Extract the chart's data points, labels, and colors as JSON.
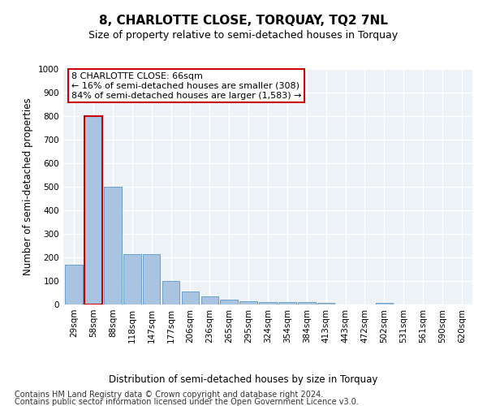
{
  "title": "8, CHARLOTTE CLOSE, TORQUAY, TQ2 7NL",
  "subtitle": "Size of property relative to semi-detached houses in Torquay",
  "xlabel": "Distribution of semi-detached houses by size in Torquay",
  "ylabel": "Number of semi-detached properties",
  "categories": [
    "29sqm",
    "58sqm",
    "88sqm",
    "118sqm",
    "147sqm",
    "177sqm",
    "206sqm",
    "236sqm",
    "265sqm",
    "295sqm",
    "324sqm",
    "354sqm",
    "384sqm",
    "413sqm",
    "443sqm",
    "472sqm",
    "502sqm",
    "531sqm",
    "561sqm",
    "590sqm",
    "620sqm"
  ],
  "values": [
    170,
    800,
    500,
    215,
    215,
    100,
    55,
    35,
    20,
    15,
    10,
    10,
    10,
    8,
    0,
    0,
    8,
    0,
    0,
    0,
    0
  ],
  "bar_color": "#a8c4e0",
  "bar_edge_color": "#6aa0c8",
  "highlight_index": 1,
  "highlight_bar_edge_color": "#cc0000",
  "ylim": [
    0,
    1000
  ],
  "yticks": [
    0,
    100,
    200,
    300,
    400,
    500,
    600,
    700,
    800,
    900,
    1000
  ],
  "annotation_title": "8 CHARLOTTE CLOSE: 66sqm",
  "annotation_line1": "← 16% of semi-detached houses are smaller (308)",
  "annotation_line2": "84% of semi-detached houses are larger (1,583) →",
  "annotation_box_color": "#ffffff",
  "annotation_box_edge_color": "#cc0000",
  "footer_line1": "Contains HM Land Registry data © Crown copyright and database right 2024.",
  "footer_line2": "Contains public sector information licensed under the Open Government Licence v3.0.",
  "background_color": "#edf2f7",
  "grid_color": "#ffffff",
  "title_fontsize": 11,
  "subtitle_fontsize": 9,
  "axis_label_fontsize": 8.5,
  "tick_fontsize": 7.5,
  "annotation_fontsize": 8,
  "footer_fontsize": 7
}
